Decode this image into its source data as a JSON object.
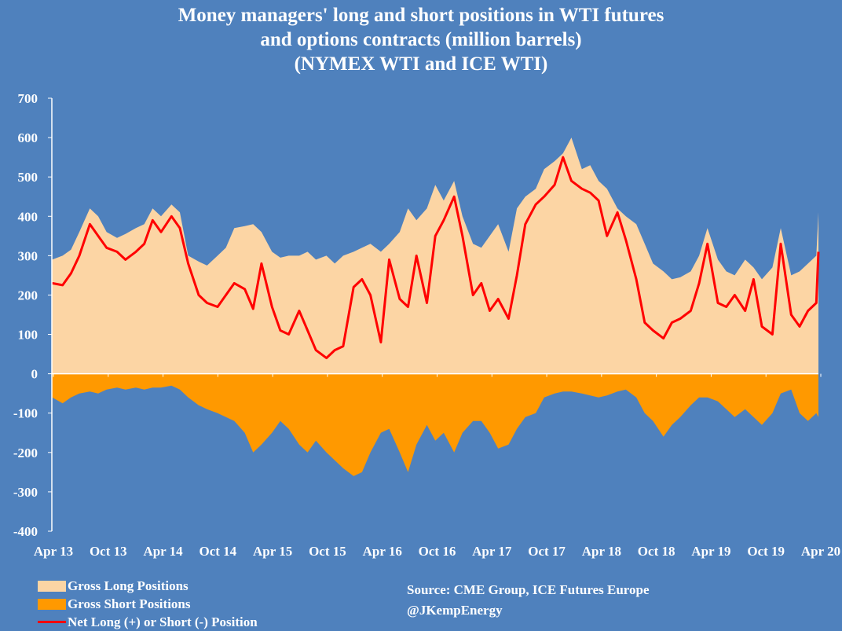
{
  "chart_data": {
    "type": "area",
    "title_lines": [
      "Money managers' long and short positions in WTI futures",
      "and options contracts (million barrels)",
      "(NYMEX WTI and ICE WTI)"
    ],
    "ylim": [
      -400,
      700
    ],
    "yticks": [
      700,
      600,
      500,
      400,
      300,
      200,
      100,
      0,
      -100,
      -200,
      -300,
      -400
    ],
    "x_range": [
      "2013-04-01",
      "2020-04-07"
    ],
    "xtick_labels": [
      "Apr 13",
      "Oct 13",
      "Apr 14",
      "Oct 14",
      "Apr 15",
      "Oct 15",
      "Apr 16",
      "Oct 16",
      "Apr 17",
      "Oct 17",
      "Apr 18",
      "Oct 18",
      "Apr 19",
      "Oct 19",
      "Apr 20"
    ],
    "grid": false,
    "legend_position": "bottom-left",
    "x": [
      "2013-04-02",
      "2013-05-07",
      "2013-06-04",
      "2013-07-02",
      "2013-08-06",
      "2013-09-03",
      "2013-10-01",
      "2013-11-05",
      "2013-12-03",
      "2014-01-07",
      "2014-02-04",
      "2014-03-04",
      "2014-04-01",
      "2014-05-06",
      "2014-06-03",
      "2014-07-01",
      "2014-08-05",
      "2014-09-02",
      "2014-10-07",
      "2014-11-04",
      "2014-12-02",
      "2015-01-06",
      "2015-02-03",
      "2015-03-03",
      "2015-04-07",
      "2015-05-05",
      "2015-06-02",
      "2015-07-07",
      "2015-08-04",
      "2015-09-01",
      "2015-10-06",
      "2015-11-03",
      "2015-12-01",
      "2016-01-05",
      "2016-02-02",
      "2016-03-01",
      "2016-04-05",
      "2016-05-03",
      "2016-06-07",
      "2016-07-05",
      "2016-08-02",
      "2016-09-06",
      "2016-10-04",
      "2016-11-01",
      "2016-12-06",
      "2017-01-03",
      "2017-02-07",
      "2017-03-07",
      "2017-04-04",
      "2017-05-02",
      "2017-06-06",
      "2017-07-04",
      "2017-08-01",
      "2017-09-05",
      "2017-10-03",
      "2017-11-07",
      "2017-12-05",
      "2018-01-02",
      "2018-02-06",
      "2018-03-06",
      "2018-04-03",
      "2018-05-01",
      "2018-06-05",
      "2018-07-03",
      "2018-08-07",
      "2018-09-04",
      "2018-10-02",
      "2018-11-06",
      "2018-12-04",
      "2019-01-01",
      "2019-02-05",
      "2019-03-05",
      "2019-04-02",
      "2019-05-07",
      "2019-06-04",
      "2019-07-02",
      "2019-08-06",
      "2019-09-03",
      "2019-10-01",
      "2019-11-05",
      "2019-12-03",
      "2020-01-07",
      "2020-02-04",
      "2020-03-03",
      "2020-03-31",
      "2020-04-07"
    ],
    "series": [
      {
        "name": "Gross Long Positions",
        "color": "#fcd5a4",
        "style": "area",
        "values": [
          290,
          300,
          315,
          360,
          420,
          400,
          360,
          345,
          355,
          370,
          380,
          420,
          400,
          430,
          410,
          300,
          285,
          275,
          300,
          320,
          370,
          375,
          380,
          360,
          310,
          295,
          300,
          300,
          310,
          290,
          300,
          280,
          300,
          310,
          320,
          330,
          310,
          330,
          360,
          420,
          390,
          420,
          480,
          440,
          490,
          400,
          330,
          320,
          350,
          380,
          310,
          420,
          450,
          470,
          520,
          540,
          560,
          600,
          520,
          530,
          490,
          470,
          420,
          400,
          380,
          330,
          280,
          260,
          240,
          245,
          260,
          300,
          370,
          290,
          260,
          250,
          290,
          270,
          240,
          270,
          370,
          250,
          260,
          280,
          300,
          410
        ]
      },
      {
        "name": "Gross Short Positions",
        "color": "#ff9900",
        "style": "area",
        "values": [
          -60,
          -75,
          -60,
          -50,
          -45,
          -50,
          -40,
          -35,
          -40,
          -35,
          -40,
          -35,
          -35,
          -30,
          -40,
          -60,
          -80,
          -90,
          -100,
          -110,
          -120,
          -150,
          -200,
          -180,
          -150,
          -120,
          -140,
          -180,
          -200,
          -170,
          -200,
          -220,
          -240,
          -260,
          -250,
          -200,
          -150,
          -140,
          -200,
          -250,
          -180,
          -130,
          -170,
          -150,
          -200,
          -150,
          -120,
          -120,
          -150,
          -190,
          -180,
          -140,
          -110,
          -100,
          -60,
          -50,
          -45,
          -45,
          -50,
          -55,
          -60,
          -55,
          -45,
          -40,
          -60,
          -100,
          -120,
          -160,
          -130,
          -110,
          -80,
          -60,
          -60,
          -70,
          -90,
          -110,
          -90,
          -110,
          -130,
          -100,
          -50,
          -40,
          -100,
          -120,
          -100,
          -110
        ]
      },
      {
        "name": "Net Long (+) or Short (-) Position",
        "color": "#ff0000",
        "style": "line",
        "values": [
          230,
          225,
          255,
          300,
          380,
          350,
          320,
          310,
          290,
          310,
          330,
          390,
          360,
          400,
          370,
          280,
          200,
          180,
          170,
          200,
          230,
          215,
          165,
          280,
          170,
          110,
          100,
          160,
          110,
          60,
          40,
          60,
          70,
          220,
          240,
          200,
          80,
          290,
          190,
          170,
          300,
          180,
          350,
          390,
          450,
          350,
          200,
          230,
          160,
          190,
          140,
          250,
          380,
          430,
          450,
          480,
          550,
          490,
          470,
          460,
          440,
          350,
          410,
          340,
          240,
          130,
          110,
          90,
          130,
          140,
          160,
          230,
          330,
          180,
          170,
          200,
          160,
          240,
          120,
          100,
          330,
          150,
          120,
          160,
          180,
          310
        ]
      }
    ]
  },
  "legend": [
    {
      "label": "Gross Long Positions"
    },
    {
      "label": "Gross Short Positions"
    },
    {
      "label": "Net Long (+) or Short (-) Position"
    }
  ],
  "source": {
    "line1": "Source:  CME Group, ICE Futures Europe",
    "line2": "@JKempEnergy"
  },
  "colors": {
    "background": "#4f81bd",
    "long": "#fcd5a4",
    "short": "#ff9900",
    "net": "#ff0000",
    "text": "#ffffff"
  }
}
